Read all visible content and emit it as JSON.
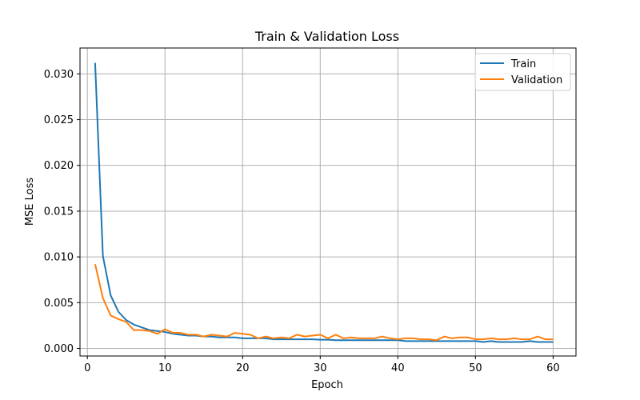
{
  "chart_data": {
    "type": "line",
    "title": "Train & Validation Loss",
    "xlabel": "Epoch",
    "ylabel": "MSE Loss",
    "xlim": [
      -0.95,
      62.95
    ],
    "ylim": [
      -0.00083,
      0.03283
    ],
    "xticks": [
      0,
      10,
      20,
      30,
      40,
      50,
      60
    ],
    "yticks": [
      0.0,
      0.005,
      0.01,
      0.015,
      0.02,
      0.025,
      0.03
    ],
    "ytick_labels": [
      "0.000",
      "0.005",
      "0.010",
      "0.015",
      "0.020",
      "0.025",
      "0.030"
    ],
    "grid": true,
    "legend_position": "top-right",
    "x": [
      1,
      2,
      3,
      4,
      5,
      6,
      7,
      8,
      9,
      10,
      11,
      12,
      13,
      14,
      15,
      16,
      17,
      18,
      19,
      20,
      21,
      22,
      23,
      24,
      25,
      26,
      27,
      28,
      29,
      30,
      31,
      32,
      33,
      34,
      35,
      36,
      37,
      38,
      39,
      40,
      41,
      42,
      43,
      44,
      45,
      46,
      47,
      48,
      49,
      50,
      51,
      52,
      53,
      54,
      55,
      56,
      57,
      58,
      59,
      60
    ],
    "series": [
      {
        "name": "Train",
        "color": "#1f77b4",
        "values": [
          0.0312,
          0.0101,
          0.0058,
          0.004,
          0.0031,
          0.0026,
          0.0023,
          0.002,
          0.0019,
          0.0018,
          0.0016,
          0.0015,
          0.0014,
          0.0014,
          0.0013,
          0.0013,
          0.0012,
          0.0012,
          0.0012,
          0.0011,
          0.0011,
          0.0011,
          0.0011,
          0.001,
          0.001,
          0.001,
          0.001,
          0.001,
          0.001,
          0.00095,
          0.00095,
          0.0009,
          0.0009,
          0.0009,
          0.0009,
          0.0009,
          0.0009,
          0.0009,
          0.0009,
          0.0009,
          0.0008,
          0.0008,
          0.0008,
          0.0008,
          0.0008,
          0.0008,
          0.0008,
          0.0008,
          0.0008,
          0.0008,
          0.0007,
          0.0008,
          0.0007,
          0.0007,
          0.0007,
          0.0007,
          0.0008,
          0.0007,
          0.0007,
          0.0007
        ]
      },
      {
        "name": "Validation",
        "color": "#ff7f0e",
        "values": [
          0.0092,
          0.0055,
          0.0036,
          0.0032,
          0.0029,
          0.002,
          0.002,
          0.0019,
          0.0016,
          0.0021,
          0.0017,
          0.0017,
          0.0015,
          0.0015,
          0.0013,
          0.0015,
          0.0014,
          0.0013,
          0.0017,
          0.0016,
          0.0015,
          0.0011,
          0.0013,
          0.0011,
          0.0012,
          0.0011,
          0.0015,
          0.0013,
          0.0014,
          0.0015,
          0.0011,
          0.0015,
          0.0011,
          0.0012,
          0.0011,
          0.0011,
          0.0011,
          0.0013,
          0.0011,
          0.001,
          0.0011,
          0.0011,
          0.001,
          0.001,
          0.0009,
          0.0013,
          0.0011,
          0.0012,
          0.0012,
          0.001,
          0.001,
          0.0011,
          0.001,
          0.001,
          0.0011,
          0.001,
          0.001,
          0.0013,
          0.001,
          0.001
        ]
      }
    ]
  }
}
